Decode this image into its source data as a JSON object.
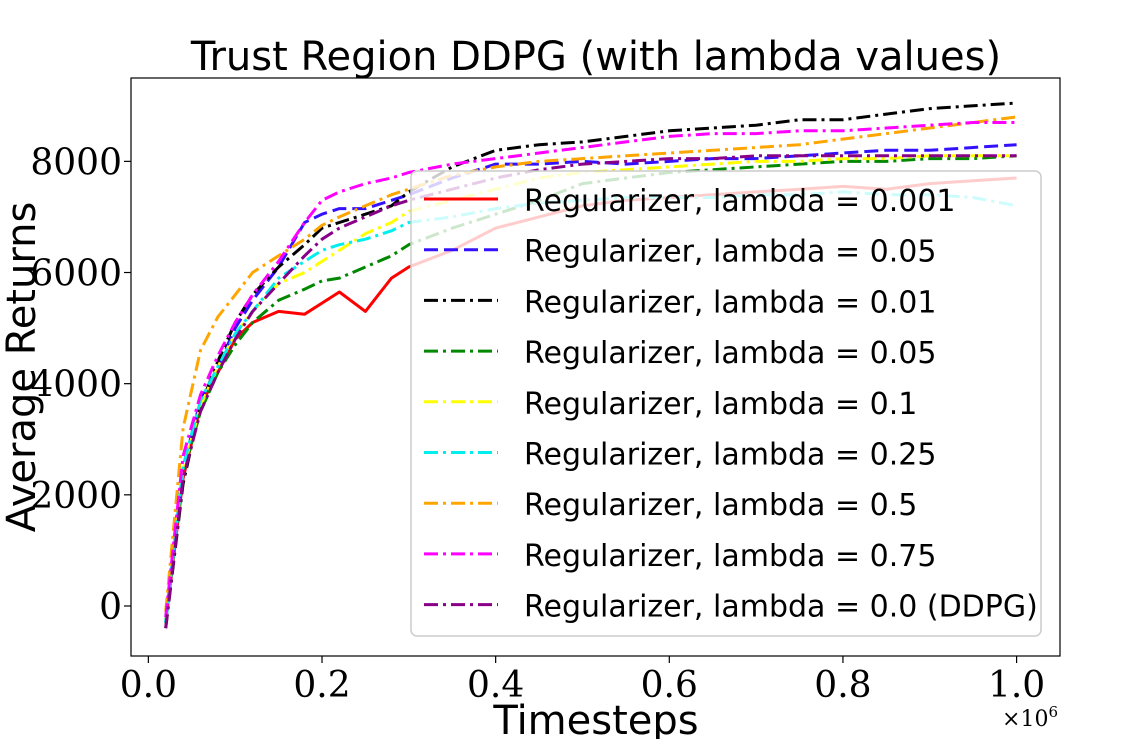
{
  "chart_data": {
    "type": "line",
    "title": "Trust Region DDPG (with lambda values)",
    "xlabel": "Timesteps",
    "ylabel": "Average Returns",
    "x_multiplier_label": "×10",
    "x_multiplier_exp": "6",
    "xlim": [
      -0.02,
      1.05
    ],
    "ylim": [
      -900,
      9500
    ],
    "xticks": [
      0.0,
      0.2,
      0.4,
      0.6,
      0.8,
      1.0
    ],
    "xtick_labels": [
      "0.0",
      "0.2",
      "0.4",
      "0.6",
      "0.8",
      "1.0"
    ],
    "yticks": [
      0,
      2000,
      4000,
      6000,
      8000
    ],
    "ytick_labels": [
      "0",
      "2000",
      "4000",
      "6000",
      "8000"
    ],
    "grid": false,
    "legend_position": "lower-right",
    "x": [
      0.02,
      0.04,
      0.06,
      0.08,
      0.1,
      0.12,
      0.15,
      0.18,
      0.2,
      0.22,
      0.25,
      0.28,
      0.3,
      0.35,
      0.4,
      0.45,
      0.5,
      0.55,
      0.6,
      0.65,
      0.7,
      0.75,
      0.8,
      0.85,
      0.9,
      0.95,
      1.0
    ],
    "series": [
      {
        "name": "Regularizer, lambda = 0.001",
        "color": "#ff0000",
        "dash": "solid",
        "values": [
          -300,
          2300,
          3600,
          4200,
          4800,
          5100,
          5300,
          5250,
          5450,
          5650,
          5300,
          5900,
          6100,
          6400,
          6800,
          7000,
          7200,
          7300,
          7350,
          7400,
          7450,
          7500,
          7550,
          7500,
          7600,
          7650,
          7700
        ]
      },
      {
        "name": "Regularizer, lambda = 0.05",
        "color": "#3311ff",
        "dash": "dashed",
        "values": [
          -250,
          2500,
          3700,
          4300,
          5000,
          5500,
          6100,
          6900,
          7050,
          7150,
          7150,
          7300,
          7400,
          7700,
          7950,
          7950,
          8000,
          7950,
          8000,
          8050,
          8050,
          8100,
          8150,
          8200,
          8200,
          8250,
          8300
        ]
      },
      {
        "name": "Regularizer, lambda = 0.01",
        "color": "#000000",
        "dash": "dashdot",
        "values": [
          -400,
          2200,
          3600,
          4400,
          5100,
          5600,
          6100,
          6500,
          6800,
          6900,
          7050,
          7200,
          7450,
          7900,
          8200,
          8300,
          8350,
          8450,
          8550,
          8600,
          8650,
          8750,
          8750,
          8850,
          8950,
          9000,
          9050
        ]
      },
      {
        "name": "Regularizer, lambda = 0.05",
        "color": "#008800",
        "dash": "dashdot",
        "values": [
          -300,
          2400,
          3500,
          4200,
          4700,
          5100,
          5500,
          5700,
          5850,
          5900,
          6100,
          6300,
          6500,
          6800,
          7050,
          7300,
          7600,
          7700,
          7800,
          7850,
          7900,
          7950,
          8000,
          8000,
          8050,
          8050,
          8100
        ]
      },
      {
        "name": "Regularizer, lambda = 0.1",
        "color": "#ffff00",
        "dash": "dashdot",
        "values": [
          -250,
          2450,
          3600,
          4300,
          4900,
          5300,
          5800,
          6000,
          6200,
          6400,
          6700,
          6900,
          7100,
          7300,
          7500,
          7700,
          7800,
          7850,
          7900,
          7950,
          8000,
          8000,
          8050,
          8050,
          8100,
          8100,
          8100
        ]
      },
      {
        "name": "Regularizer, lambda = 0.25",
        "color": "#00eeee",
        "dash": "dashdot",
        "values": [
          -300,
          2500,
          3700,
          4300,
          4900,
          5300,
          5900,
          6200,
          6400,
          6500,
          6600,
          6750,
          6900,
          7000,
          7150,
          7250,
          7300,
          7350,
          7350,
          7350,
          7400,
          7400,
          7450,
          7400,
          7400,
          7350,
          7200
        ]
      },
      {
        "name": "Regularizer, lambda = 0.5",
        "color": "#ffa500",
        "dash": "dashdot",
        "values": [
          -100,
          3200,
          4600,
          5200,
          5600,
          6000,
          6300,
          6600,
          6850,
          7000,
          7200,
          7400,
          7500,
          7750,
          7900,
          8000,
          8050,
          8100,
          8150,
          8200,
          8250,
          8300,
          8400,
          8500,
          8600,
          8700,
          8800
        ]
      },
      {
        "name": "Regularizer, lambda = 0.75",
        "color": "#ff00ff",
        "dash": "dashdot",
        "values": [
          -200,
          2700,
          3800,
          4500,
          5100,
          5600,
          6200,
          6900,
          7300,
          7450,
          7600,
          7700,
          7800,
          7950,
          8050,
          8150,
          8250,
          8350,
          8450,
          8500,
          8500,
          8550,
          8550,
          8600,
          8650,
          8700,
          8700
        ]
      },
      {
        "name": "Regularizer, lambda = 0.0 (DDPG)",
        "color": "#880088",
        "dash": "dashdot",
        "values": [
          -400,
          2300,
          3500,
          4200,
          4800,
          5300,
          5800,
          6300,
          6600,
          6800,
          7000,
          7200,
          7300,
          7500,
          7700,
          7850,
          7950,
          8000,
          8050,
          8050,
          8100,
          8100,
          8100,
          8100,
          8100,
          8100,
          8100
        ]
      }
    ]
  }
}
